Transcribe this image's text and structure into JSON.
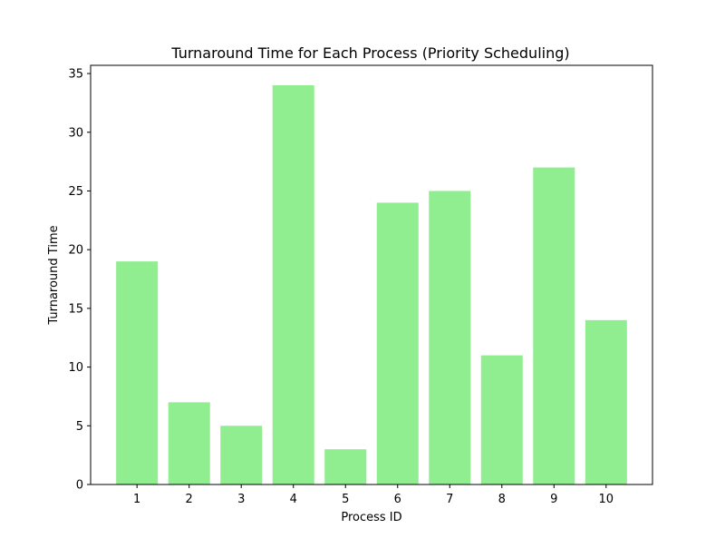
{
  "chart_data": {
    "type": "bar",
    "title": "Turnaround Time for Each Process (Priority Scheduling)",
    "xlabel": "Process ID",
    "ylabel": "Turnaround Time",
    "categories": [
      "1",
      "2",
      "3",
      "4",
      "5",
      "6",
      "7",
      "8",
      "9",
      "10"
    ],
    "values": [
      19,
      7,
      5,
      34,
      3,
      24,
      25,
      11,
      27,
      14
    ],
    "ylim": [
      0,
      35.7
    ],
    "yticks": [
      0,
      5,
      10,
      15,
      20,
      25,
      30,
      35
    ],
    "ytick_labels": [
      "0",
      "5",
      "10",
      "15",
      "20",
      "25",
      "30",
      "35"
    ],
    "grid": false,
    "bar_color": "#90ee90"
  }
}
